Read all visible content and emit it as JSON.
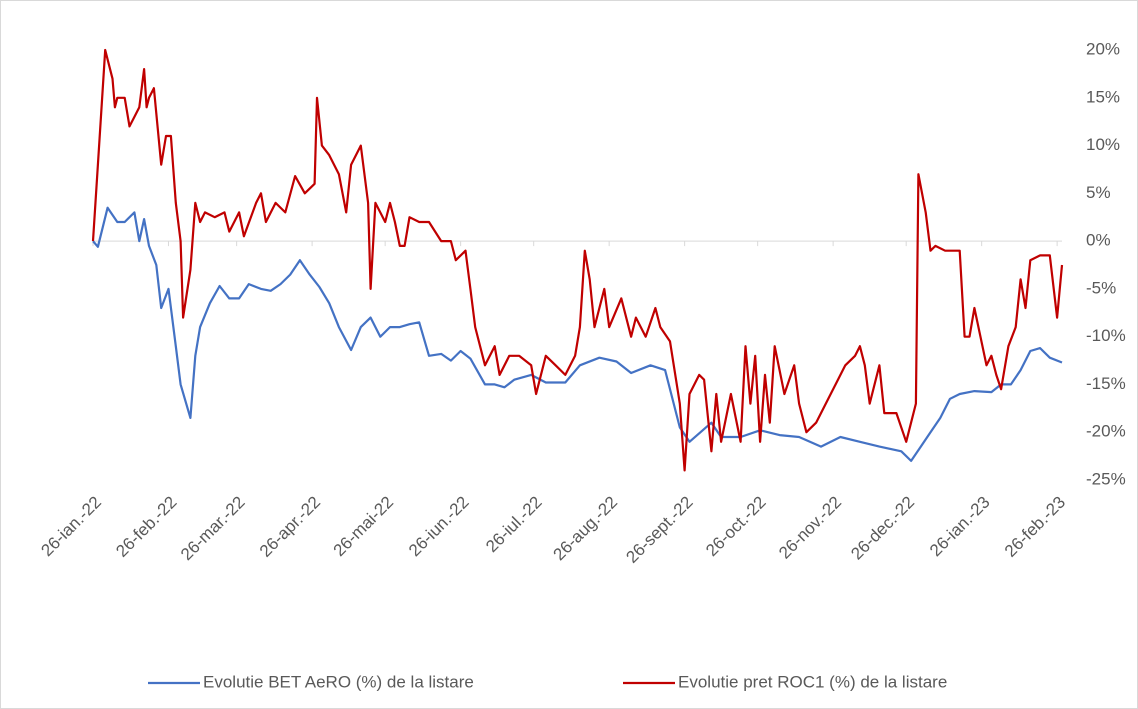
{
  "chart_data": {
    "type": "line",
    "xlim": [
      "2022-01-26",
      "2023-02-28"
    ],
    "xticks": [
      {
        "value": "2022-01-26",
        "label": "26-ian.-22"
      },
      {
        "value": "2022-02-26",
        "label": "26-feb.-22"
      },
      {
        "value": "2022-03-26",
        "label": "26-mar.-22"
      },
      {
        "value": "2022-04-26",
        "label": "26-apr.-22"
      },
      {
        "value": "2022-05-26",
        "label": "26-mai-22"
      },
      {
        "value": "2022-06-26",
        "label": "26-iun.-22"
      },
      {
        "value": "2022-07-26",
        "label": "26-iul.-22"
      },
      {
        "value": "2022-08-26",
        "label": "26-aug.-22"
      },
      {
        "value": "2022-09-26",
        "label": "26-sept.-22"
      },
      {
        "value": "2022-10-26",
        "label": "26-oct.-22"
      },
      {
        "value": "2022-11-26",
        "label": "26-nov.-22"
      },
      {
        "value": "2022-12-26",
        "label": "26-dec.-22"
      },
      {
        "value": "2023-01-26",
        "label": "26-ian.-23"
      },
      {
        "value": "2023-02-26",
        "label": "26-feb.-23"
      }
    ],
    "ylim": [
      -25,
      20
    ],
    "yticks": [
      {
        "value": 20,
        "label": "20%"
      },
      {
        "value": 15,
        "label": "15%"
      },
      {
        "value": 10,
        "label": "10%"
      },
      {
        "value": 5,
        "label": "5%"
      },
      {
        "value": 0,
        "label": "0%"
      },
      {
        "value": -5,
        "label": "-5%"
      },
      {
        "value": -10,
        "label": "-10%"
      },
      {
        "value": -15,
        "label": "-15%"
      },
      {
        "value": -20,
        "label": "-20%"
      },
      {
        "value": -25,
        "label": "-25%"
      }
    ],
    "legend": "bottom",
    "series": [
      {
        "name": "Evolutie BET AeRO (%) de la listare",
        "color": "#4472c4",
        "x": [
          "2022-01-26",
          "2022-01-28",
          "2022-02-01",
          "2022-02-05",
          "2022-02-08",
          "2022-02-12",
          "2022-02-14",
          "2022-02-16",
          "2022-02-18",
          "2022-02-21",
          "2022-02-23",
          "2022-02-26",
          "2022-03-01",
          "2022-03-03",
          "2022-03-07",
          "2022-03-09",
          "2022-03-11",
          "2022-03-15",
          "2022-03-19",
          "2022-03-23",
          "2022-03-27",
          "2022-03-31",
          "2022-04-05",
          "2022-04-09",
          "2022-04-13",
          "2022-04-17",
          "2022-04-21",
          "2022-04-25",
          "2022-04-29",
          "2022-05-03",
          "2022-05-07",
          "2022-05-12",
          "2022-05-16",
          "2022-05-20",
          "2022-05-24",
          "2022-05-28",
          "2022-06-01",
          "2022-06-05",
          "2022-06-09",
          "2022-06-13",
          "2022-06-18",
          "2022-06-22",
          "2022-06-26",
          "2022-06-30",
          "2022-07-06",
          "2022-07-10",
          "2022-07-14",
          "2022-07-18",
          "2022-07-25",
          "2022-07-31",
          "2022-08-08",
          "2022-08-14",
          "2022-08-22",
          "2022-08-29",
          "2022-09-04",
          "2022-09-12",
          "2022-09-18",
          "2022-09-24",
          "2022-09-28",
          "2022-10-07",
          "2022-10-11",
          "2022-10-19",
          "2022-10-27",
          "2022-11-04",
          "2022-11-12",
          "2022-11-21",
          "2022-11-29",
          "2022-12-07",
          "2022-12-15",
          "2022-12-24",
          "2022-12-28",
          "2023-01-01",
          "2023-01-05",
          "2023-01-09",
          "2023-01-13",
          "2023-01-17",
          "2023-01-23",
          "2023-01-30",
          "2023-02-03",
          "2023-02-07",
          "2023-02-11",
          "2023-02-15",
          "2023-02-19",
          "2023-02-23",
          "2023-02-28"
        ],
        "values": [
          0,
          -0.6,
          3.5,
          2,
          2,
          3,
          0,
          2.3,
          -0.5,
          -2.5,
          -7,
          -5,
          -11,
          -15,
          -18.5,
          -12,
          -9,
          -6.5,
          -4.7,
          -6,
          -6,
          -4.5,
          -5,
          -5.2,
          -4.5,
          -3.5,
          -2,
          -3.5,
          -4.8,
          -6.5,
          -9,
          -11.4,
          -9,
          -8,
          -10,
          -9,
          -9,
          -8.7,
          -8.5,
          -12,
          -11.8,
          -12.5,
          -11.5,
          -12.3,
          -15,
          -15,
          -15.3,
          -14.5,
          -14,
          -14.8,
          -14.8,
          -13,
          -12.2,
          -12.6,
          -13.8,
          -13,
          -13.5,
          -19.5,
          -21,
          -19,
          -20.5,
          -20.5,
          -19.8,
          -20.3,
          -20.5,
          -21.5,
          -20.5,
          -21,
          -21.5,
          -22,
          -23,
          -21.5,
          -20,
          -18.5,
          -16.5,
          -16,
          -15.7,
          -15.8,
          -15,
          -15,
          -13.5,
          -11.5,
          -11.2,
          -12.2,
          -12.7
        ]
      },
      {
        "name": "Evolutie pret ROC1 (%) de la listare",
        "color": "#c00000",
        "x": [
          "2022-01-26",
          "2022-01-28",
          "2022-01-31",
          "2022-02-03",
          "2022-02-04",
          "2022-02-05",
          "2022-02-08",
          "2022-02-10",
          "2022-02-12",
          "2022-02-14",
          "2022-02-16",
          "2022-02-17",
          "2022-02-18",
          "2022-02-20",
          "2022-02-23",
          "2022-02-25",
          "2022-02-27",
          "2022-03-01",
          "2022-03-03",
          "2022-03-04",
          "2022-03-07",
          "2022-03-09",
          "2022-03-11",
          "2022-03-13",
          "2022-03-17",
          "2022-03-21",
          "2022-03-23",
          "2022-03-27",
          "2022-03-29",
          "2022-04-03",
          "2022-04-05",
          "2022-04-07",
          "2022-04-11",
          "2022-04-15",
          "2022-04-19",
          "2022-04-23",
          "2022-04-27",
          "2022-04-28",
          "2022-04-30",
          "2022-05-03",
          "2022-05-07",
          "2022-05-10",
          "2022-05-12",
          "2022-05-16",
          "2022-05-19",
          "2022-05-20",
          "2022-05-22",
          "2022-05-26",
          "2022-05-28",
          "2022-05-30",
          "2022-06-01",
          "2022-06-03",
          "2022-06-05",
          "2022-06-09",
          "2022-06-13",
          "2022-06-18",
          "2022-06-22",
          "2022-06-24",
          "2022-06-28",
          "2022-06-30",
          "2022-07-02",
          "2022-07-06",
          "2022-07-10",
          "2022-07-12",
          "2022-07-16",
          "2022-07-20",
          "2022-07-25",
          "2022-07-27",
          "2022-07-31",
          "2022-08-04",
          "2022-08-08",
          "2022-08-12",
          "2022-08-14",
          "2022-08-16",
          "2022-08-18",
          "2022-08-20",
          "2022-08-24",
          "2022-08-26",
          "2022-08-31",
          "2022-09-04",
          "2022-09-06",
          "2022-09-10",
          "2022-09-14",
          "2022-09-16",
          "2022-09-20",
          "2022-09-24",
          "2022-09-26",
          "2022-09-28",
          "2022-10-02",
          "2022-10-04",
          "2022-10-07",
          "2022-10-09",
          "2022-10-11",
          "2022-10-15",
          "2022-10-19",
          "2022-10-21",
          "2022-10-23",
          "2022-10-25",
          "2022-10-27",
          "2022-10-29",
          "2022-10-31",
          "2022-11-02",
          "2022-11-06",
          "2022-11-10",
          "2022-11-12",
          "2022-11-15",
          "2022-11-19",
          "2022-11-25",
          "2022-12-01",
          "2022-12-05",
          "2022-12-07",
          "2022-12-09",
          "2022-12-11",
          "2022-12-15",
          "2022-12-17",
          "2022-12-22",
          "2022-12-26",
          "2022-12-30",
          "2022-12-31",
          "2023-01-03",
          "2023-01-05",
          "2023-01-07",
          "2023-01-11",
          "2023-01-17",
          "2023-01-19",
          "2023-01-21",
          "2023-01-23",
          "2023-01-28",
          "2023-01-30",
          "2023-02-01",
          "2023-02-03",
          "2023-02-06",
          "2023-02-09",
          "2023-02-11",
          "2023-02-13",
          "2023-02-15",
          "2023-02-19",
          "2023-02-23",
          "2023-02-26",
          "2023-02-28"
        ],
        "values": [
          0,
          8,
          20,
          17,
          14,
          15,
          15,
          12,
          13,
          14,
          18,
          14,
          15,
          16,
          8,
          11,
          11,
          4,
          0,
          -8,
          -3,
          4,
          2,
          3,
          2.5,
          3,
          1,
          3,
          0.5,
          4,
          5,
          2,
          4,
          3,
          6.8,
          5,
          6,
          15,
          10,
          9,
          7,
          3,
          8,
          10,
          4,
          -5,
          4,
          2,
          4,
          2,
          -0.5,
          -0.5,
          2.5,
          2,
          2,
          0,
          0,
          -2,
          -1,
          -5,
          -9,
          -13,
          -11,
          -14,
          -12,
          -12,
          -13,
          -16,
          -12,
          -13,
          -14,
          -12,
          -9,
          -1,
          -4,
          -9,
          -5,
          -9,
          -6,
          -10,
          -8,
          -10,
          -7,
          -9,
          -10.5,
          -17,
          -24,
          -16,
          -14,
          -14.5,
          -22,
          -16,
          -21,
          -16,
          -21,
          -11,
          -17,
          -12,
          -21,
          -14,
          -19,
          -11,
          -16,
          -13,
          -17,
          -20,
          -19,
          -16,
          -13,
          -12,
          -11,
          -13,
          -17,
          -13,
          -18,
          -18,
          -21,
          -17,
          7,
          3,
          -1,
          -0.5,
          -1,
          -1,
          -10,
          -10,
          -7,
          -13,
          -12,
          -14,
          -15.5,
          -11,
          -9,
          -4,
          -7,
          -2,
          -1.5,
          -1.5,
          -8,
          -2.5
        ]
      }
    ]
  }
}
